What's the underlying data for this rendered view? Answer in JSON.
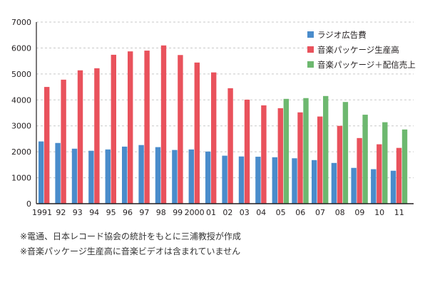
{
  "chart_data": {
    "type": "bar",
    "title": "",
    "xlabel": "",
    "ylabel": "",
    "ylim": [
      0,
      7000
    ],
    "yticks": [
      0,
      1000,
      2000,
      3000,
      4000,
      5000,
      6000,
      7000
    ],
    "grid": true,
    "legend_position": "top-right",
    "categories": [
      "1991",
      "92",
      "93",
      "94",
      "95",
      "96",
      "97",
      "98",
      "99",
      "2000",
      "01",
      "02",
      "03",
      "04",
      "05",
      "06",
      "07",
      "08",
      "09",
      "10",
      "11"
    ],
    "series": [
      {
        "name": "ラジオ広告費",
        "color": "#4a8ccb",
        "values": [
          2400,
          2340,
          2120,
          2040,
          2090,
          2200,
          2260,
          2180,
          2070,
          2090,
          2010,
          1850,
          1820,
          1810,
          1790,
          1750,
          1680,
          1570,
          1380,
          1330,
          1270
        ]
      },
      {
        "name": "音楽パッケージ生産高",
        "color": "#e9525c",
        "values": [
          4500,
          4780,
          5140,
          5220,
          5740,
          5870,
          5900,
          6100,
          5730,
          5440,
          5060,
          4450,
          4010,
          3790,
          3680,
          3520,
          3360,
          3000,
          2530,
          2290,
          2150
        ]
      },
      {
        "name": "音楽パッケージ＋配信売上",
        "color": "#6db86f",
        "values": [
          null,
          null,
          null,
          null,
          null,
          null,
          null,
          null,
          null,
          null,
          null,
          null,
          null,
          null,
          4040,
          4070,
          4150,
          3920,
          3430,
          3140,
          2860
        ]
      }
    ]
  },
  "notes": [
    "※電通、日本レコード協会の統計をもとに三浦教授が作成",
    "※音楽パッケージ生産高に音楽ビデオは含まれていません"
  ]
}
